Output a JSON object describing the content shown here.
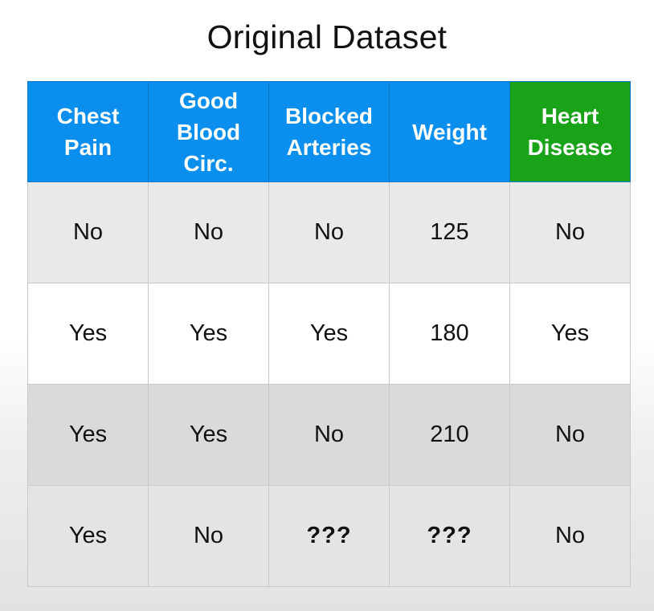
{
  "title": "Original Dataset",
  "table": {
    "headers": [
      {
        "label": "Chest\nPain",
        "type": "feature"
      },
      {
        "label": "Good\nBlood\nCirc.",
        "type": "feature"
      },
      {
        "label": "Blocked\nArteries",
        "type": "feature"
      },
      {
        "label": "Weight",
        "type": "feature"
      },
      {
        "label": "Heart\nDisease",
        "type": "target"
      }
    ],
    "rows": [
      [
        "No",
        "No",
        "No",
        "125",
        "No"
      ],
      [
        "Yes",
        "Yes",
        "Yes",
        "180",
        "Yes"
      ],
      [
        "Yes",
        "Yes",
        "No",
        "210",
        "No"
      ],
      [
        "Yes",
        "No",
        "???",
        "???",
        "No"
      ]
    ]
  },
  "colors": {
    "feature_header": "#0a8fef",
    "target_header": "#18a318"
  }
}
